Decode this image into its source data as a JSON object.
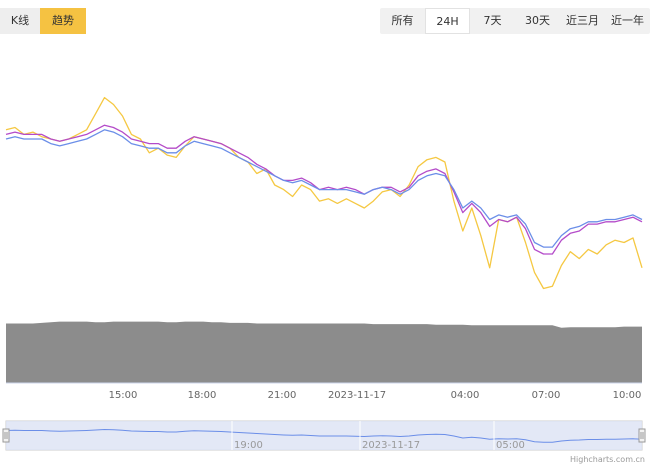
{
  "toggles": {
    "kline_label": "K线",
    "trend_label": "趋势",
    "active": "趋势"
  },
  "range_selector": {
    "buttons": [
      "所有",
      "24H",
      "7天",
      "30天",
      "近三月",
      "近一年"
    ],
    "active": "24H"
  },
  "credit": "Highcharts.com.cn",
  "navigator": {
    "tick_labels": [
      "19:00",
      "2023-11-17",
      "05:00"
    ]
  },
  "colors": {
    "yellow": "#f5c842",
    "purple": "#b44bc9",
    "blue": "#6b8ee8",
    "volume": "#8c8c8c",
    "navigator_fill": "#dde4f5",
    "navigator_line": "#6b8ee8"
  },
  "chart_data": {
    "type": "line",
    "title": "",
    "xlabel": "",
    "ylabel": "",
    "x_tick_labels": [
      "15:00",
      "18:00",
      "21:00",
      "2023-11-17",
      "04:00",
      "07:00",
      "10:00"
    ],
    "x_range": [
      "2023-11-16 11:00",
      "2023-11-17 10:20"
    ],
    "ylim": [
      0,
      100
    ],
    "grid": false,
    "legend": "none",
    "sample_interval_minutes": 20,
    "series": [
      {
        "color": "#f5c842",
        "values": [
          74,
          75,
          72,
          73,
          71,
          70,
          69,
          70,
          72,
          74,
          81,
          88,
          85,
          80,
          72,
          70,
          64,
          66,
          63,
          62,
          67,
          71,
          70,
          69,
          68,
          66,
          62,
          60,
          55,
          57,
          50,
          48,
          45,
          50,
          48,
          43,
          44,
          42,
          44,
          42,
          40,
          43,
          47,
          48,
          45,
          50,
          58,
          61,
          62,
          60,
          43,
          30,
          40,
          28,
          14,
          35,
          34,
          36,
          25,
          12,
          5,
          6,
          15,
          21,
          18,
          22,
          20,
          24,
          26,
          25,
          27,
          14
        ]
      },
      {
        "color": "#b44bc9",
        "values": [
          72,
          73,
          72,
          72,
          72,
          70,
          69,
          70,
          71,
          72,
          74,
          76,
          75,
          73,
          70,
          69,
          68,
          68,
          66,
          66,
          69,
          71,
          70,
          69,
          68,
          66,
          64,
          62,
          59,
          57,
          54,
          52,
          52,
          53,
          51,
          48,
          49,
          48,
          49,
          48,
          46,
          48,
          49,
          49,
          47,
          49,
          54,
          56,
          57,
          55,
          47,
          38,
          42,
          38,
          32,
          35,
          34,
          36,
          31,
          22,
          20,
          20,
          26,
          29,
          30,
          33,
          33,
          34,
          34,
          35,
          36,
          34
        ]
      },
      {
        "color": "#6b8ee8",
        "values": [
          70,
          71,
          70,
          70,
          70,
          68,
          67,
          68,
          69,
          70,
          72,
          74,
          73,
          71,
          68,
          67,
          66,
          66,
          64,
          64,
          67,
          69,
          68,
          67,
          66,
          64,
          62,
          60,
          58,
          56,
          54,
          52,
          51,
          52,
          50,
          48,
          48,
          48,
          48,
          47,
          46,
          48,
          49,
          48,
          46,
          48,
          52,
          54,
          55,
          54,
          48,
          40,
          43,
          40,
          35,
          37,
          36,
          37,
          33,
          25,
          23,
          23,
          28,
          31,
          32,
          34,
          34,
          35,
          35,
          36,
          37,
          35
        ]
      }
    ],
    "volume": {
      "color": "#8c8c8c",
      "values": [
        96,
        96,
        96,
        96,
        97,
        98,
        99,
        99,
        99,
        99,
        98,
        98,
        99,
        99,
        99,
        99,
        99,
        99,
        98,
        98,
        99,
        99,
        99,
        98,
        98,
        97,
        97,
        97,
        96,
        96,
        96,
        96,
        96,
        96,
        96,
        96,
        96,
        96,
        96,
        96,
        96,
        95,
        95,
        95,
        95,
        95,
        95,
        95,
        94,
        94,
        94,
        94,
        93,
        93,
        93,
        93,
        93,
        93,
        93,
        93,
        93,
        93,
        89,
        90,
        90,
        90,
        90,
        90,
        90,
        91,
        91,
        91
      ]
    }
  }
}
